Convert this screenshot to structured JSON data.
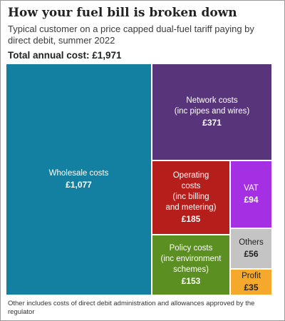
{
  "title": "How your fuel bill is broken down",
  "subtitle": "Typical customer on a price capped dual-fuel tariff paying by direct debit, summer 2022",
  "total": "Total annual cost: £1,971",
  "footnote": "Other includes costs of direct debit administration and allowances approved by the regulator",
  "chart_data": {
    "type": "treemap",
    "total": 1971,
    "items": [
      {
        "key": "wholesale",
        "label": "Wholesale costs",
        "value": 1077,
        "value_label": "£1,077",
        "color": "#1380a1"
      },
      {
        "key": "network",
        "label": "Network costs\n(inc pipes and wires)",
        "value": 371,
        "value_label": "£371",
        "color": "#58357b"
      },
      {
        "key": "operating",
        "label": "Operating\ncosts\n(inc billing\nand metering)",
        "value": 185,
        "value_label": "£185",
        "color": "#b61e1c"
      },
      {
        "key": "vat",
        "label": "VAT",
        "value": 94,
        "value_label": "£94",
        "color": "#a530e3"
      },
      {
        "key": "policy",
        "label": "Policy costs\n(inc environment\nschemes)",
        "value": 153,
        "value_label": "£153",
        "color": "#5b8f22"
      },
      {
        "key": "others",
        "label": "Others",
        "value": 56,
        "value_label": "£56",
        "color": "#c4c4c4"
      },
      {
        "key": "profit",
        "label": "Profit",
        "value": 35,
        "value_label": "£35",
        "color": "#f4a92c"
      }
    ]
  }
}
